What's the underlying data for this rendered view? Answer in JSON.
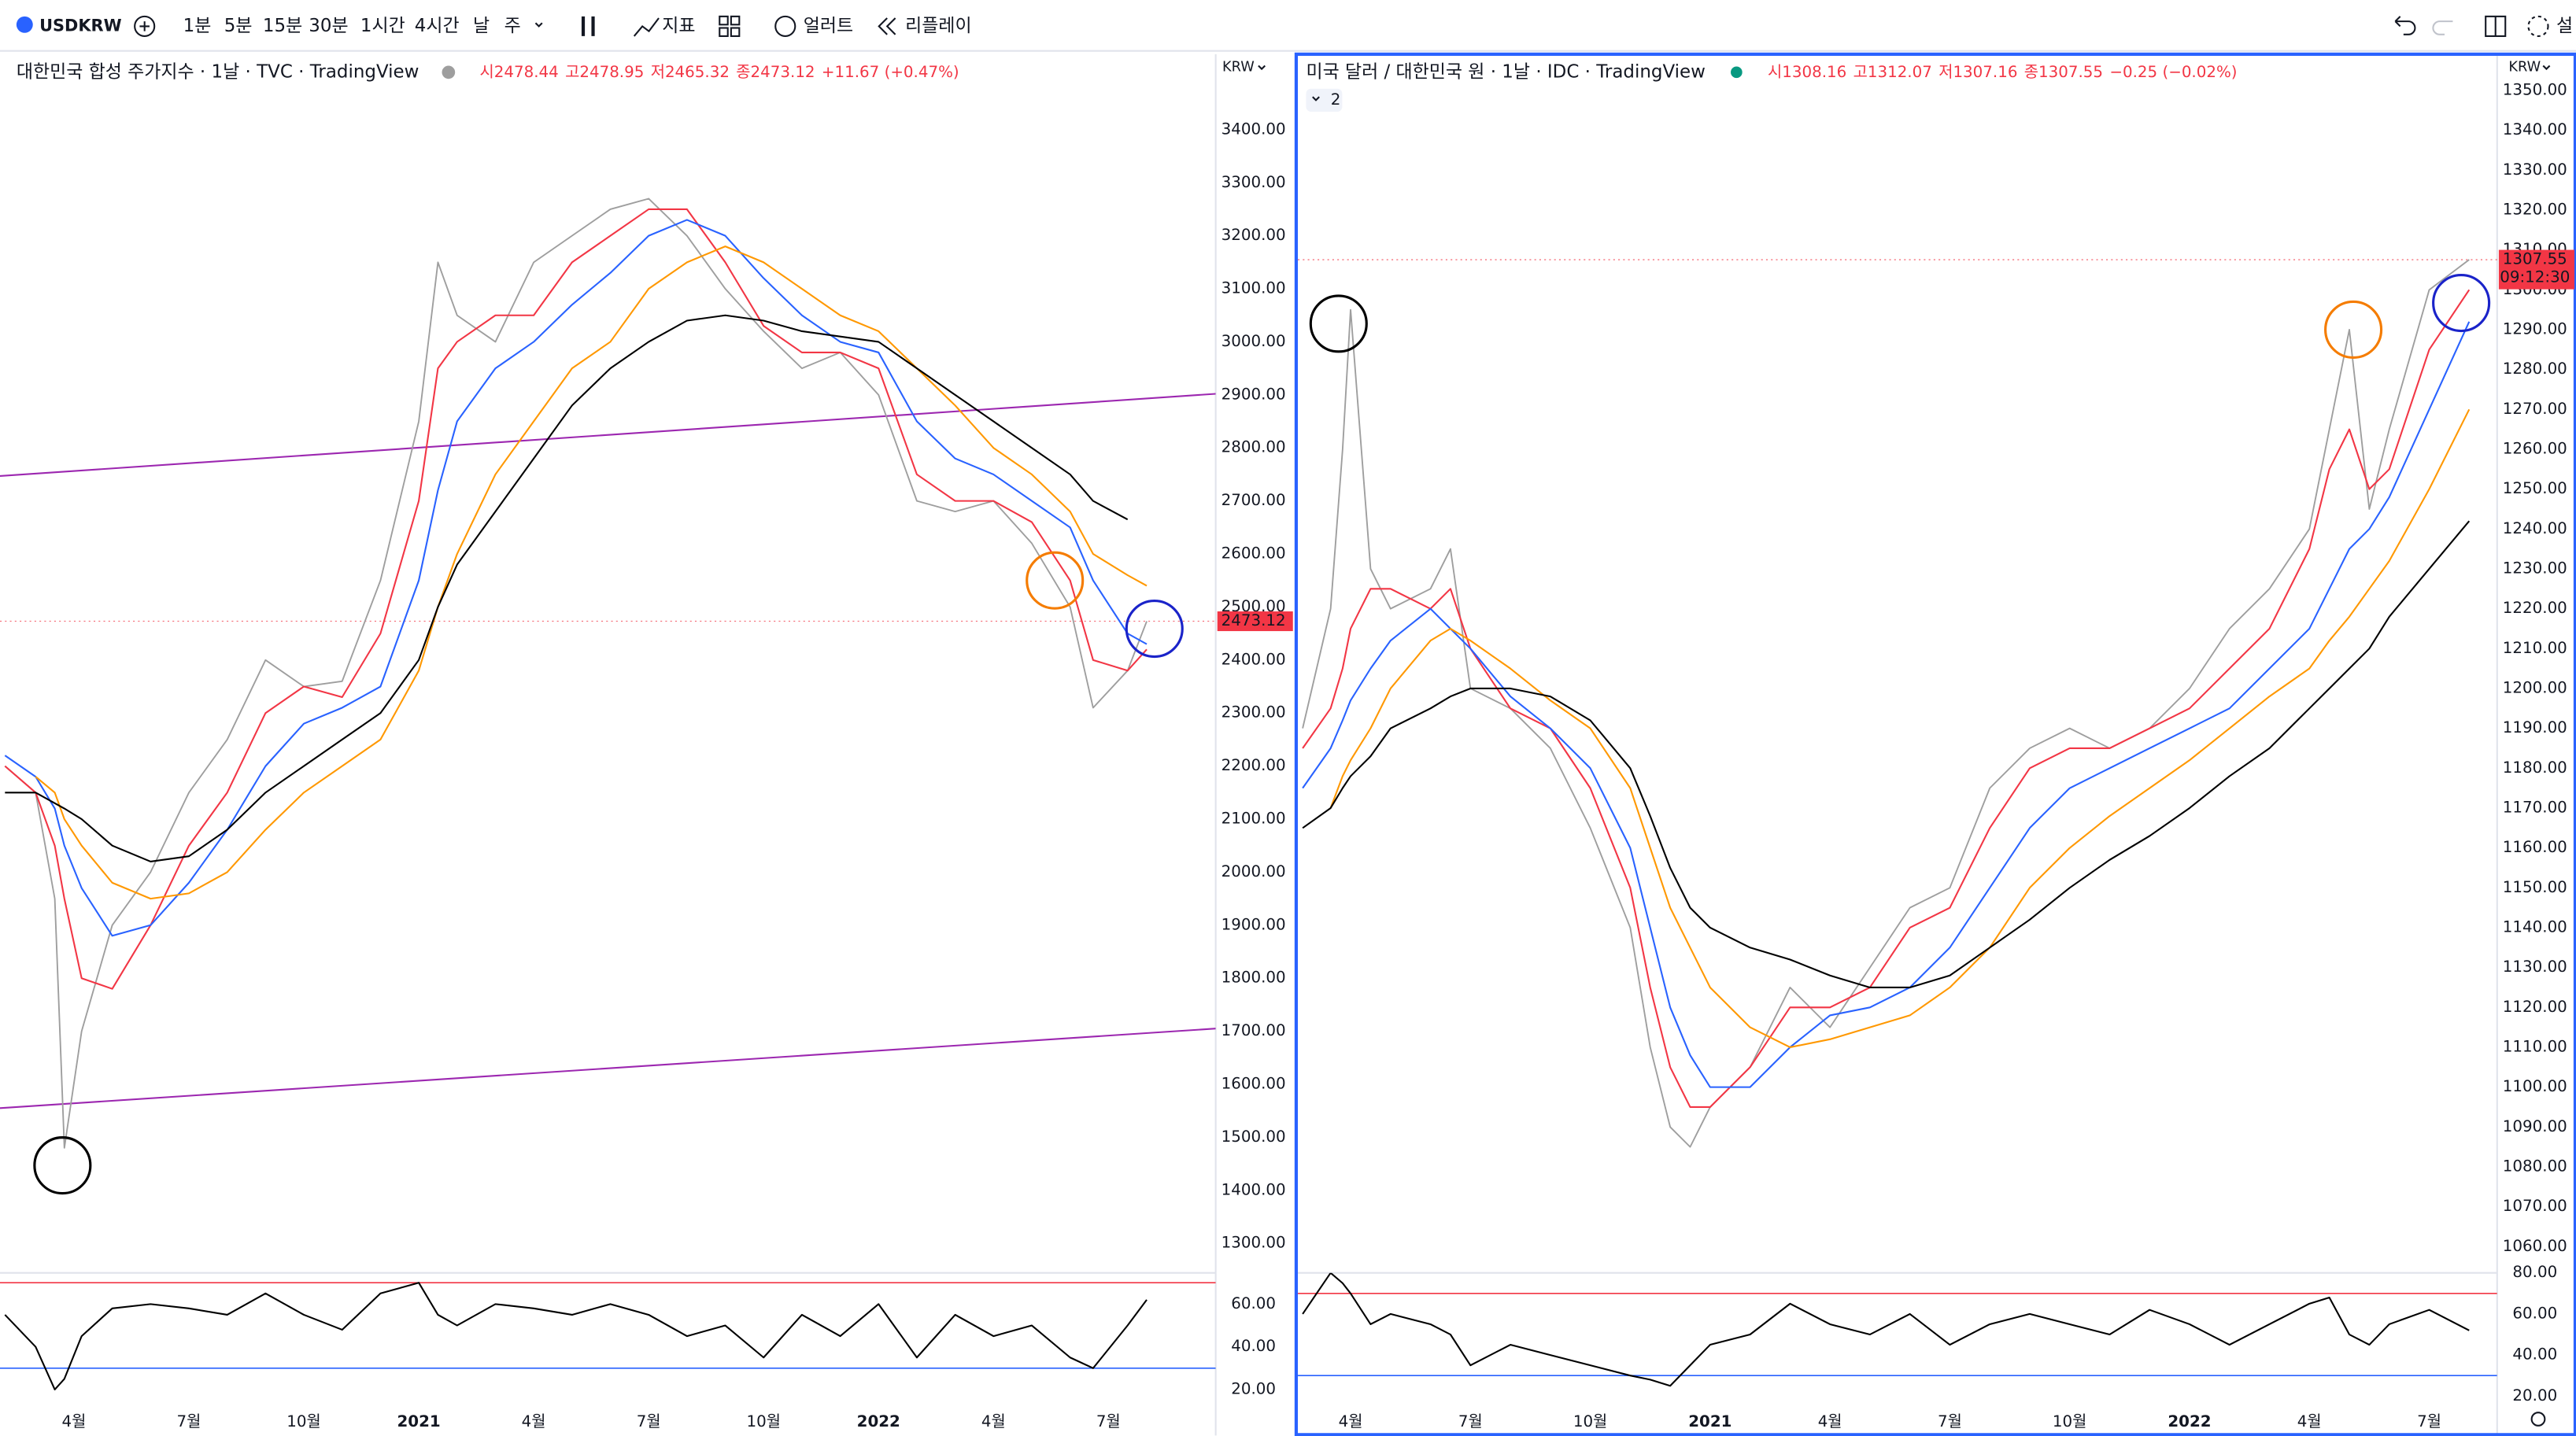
{
  "toolbar": {
    "symbol": "USDKRW",
    "intervals": [
      "1분",
      "5분",
      "15분",
      "30분",
      "1시간",
      "4시간",
      "날",
      "주"
    ],
    "indicators": "지표",
    "alerts": "얼러트",
    "replay": "리플레이",
    "right_partial": "설"
  },
  "chart_data": [
    {
      "type": "line",
      "title": "대한민국 합성 주가지수 · 1날 · TVC · TradingView",
      "ohlc": [
        "시2478.44",
        "고2478.95",
        "저2465.32",
        "종2473.12",
        "+11.67 (+0.47%)"
      ],
      "unit": "KRW",
      "x": [
        1.2,
        2,
        2.5,
        2.75,
        3.2,
        4,
        5,
        6,
        7,
        8,
        9,
        10,
        11,
        12,
        12.5,
        13,
        14,
        15,
        16,
        17,
        18,
        19,
        20,
        21,
        22,
        23,
        24,
        25,
        26,
        27,
        28,
        29,
        29.6,
        30.5,
        31
      ],
      "xlim": [
        1.07,
        32.8
      ],
      "ylim": [
        1244.3,
        3542.4
      ],
      "yticks": [
        {
          "value": 1300,
          "label": "1300.00"
        },
        {
          "value": 1400,
          "label": "1400.00"
        },
        {
          "value": 1500,
          "label": "1500.00"
        },
        {
          "value": 1600,
          "label": "1600.00"
        },
        {
          "value": 1700,
          "label": "1700.00"
        },
        {
          "value": 1800,
          "label": "1800.00"
        },
        {
          "value": 1900,
          "label": "1900.00"
        },
        {
          "value": 2000,
          "label": "2000.00"
        },
        {
          "value": 2100,
          "label": "2100.00"
        },
        {
          "value": 2200,
          "label": "2200.00"
        },
        {
          "value": 2300,
          "label": "2300.00"
        },
        {
          "value": 2400,
          "label": "2400.00"
        },
        {
          "value": 2500,
          "label": "2500.00"
        },
        {
          "value": 2600,
          "label": "2600.00"
        },
        {
          "value": 2700,
          "label": "2700.00"
        },
        {
          "value": 2800,
          "label": "2800.00"
        },
        {
          "value": 2900,
          "label": "2900.00"
        },
        {
          "value": 3000,
          "label": "3000.00"
        },
        {
          "value": 3100,
          "label": "3100.00"
        },
        {
          "value": 3200,
          "label": "3200.00"
        },
        {
          "value": 3300,
          "label": "3300.00"
        },
        {
          "value": 3400,
          "label": "3400.00"
        }
      ],
      "series": [
        {
          "color": "#9e9e9e",
          "values": [
            2200,
            2150,
            1950,
            1480,
            1700,
            1900,
            2000,
            2150,
            2250,
            2400,
            2350,
            2360,
            2550,
            2850,
            3150,
            3050,
            3000,
            3150,
            3200,
            3250,
            3270,
            3200,
            3100,
            3020,
            2950,
            2980,
            2900,
            2700,
            2680,
            2700,
            2620,
            2500,
            2310,
            2380,
            2473.12
          ]
        },
        {
          "color": "#f23645",
          "values": [
            2200,
            2150,
            2050,
            1950,
            1800,
            1780,
            1900,
            2050,
            2150,
            2300,
            2350,
            2330,
            2450,
            2700,
            2950,
            3000,
            3050,
            3050,
            3150,
            3200,
            3250,
            3250,
            3150,
            3030,
            2980,
            2980,
            2950,
            2750,
            2700,
            2700,
            2660,
            2550,
            2400,
            2380,
            2420
          ]
        },
        {
          "color": "#2962ff",
          "values": [
            2220,
            2180,
            2120,
            2050,
            1970,
            1880,
            1900,
            1980,
            2080,
            2200,
            2280,
            2310,
            2350,
            2550,
            2720,
            2850,
            2950,
            3000,
            3070,
            3130,
            3200,
            3230,
            3200,
            3120,
            3050,
            3000,
            2980,
            2850,
            2780,
            2750,
            2700,
            2650,
            2550,
            2450,
            2430
          ]
        },
        {
          "color": "#ff9800",
          "values": [
            null,
            2180,
            2150,
            2100,
            2050,
            1980,
            1950,
            1960,
            2000,
            2080,
            2150,
            2200,
            2250,
            2380,
            2500,
            2600,
            2750,
            2850,
            2950,
            3000,
            3100,
            3150,
            3180,
            3150,
            3100,
            3050,
            3020,
            2950,
            2880,
            2800,
            2750,
            2680,
            2600,
            2560,
            2540
          ]
        },
        {
          "color": "#000000",
          "values": [
            2150,
            2150,
            2130,
            2120,
            2100,
            2050,
            2020,
            2030,
            2080,
            2150,
            2200,
            2250,
            2300,
            2400,
            2500,
            2580,
            2680,
            2780,
            2880,
            2950,
            3000,
            3040,
            3050,
            3040,
            3020,
            3010,
            3000,
            2950,
            2900,
            2850,
            2800,
            2750,
            2700,
            2665,
            null
          ]
        }
      ],
      "trendlines": [
        {
          "color": "#9c27b0",
          "x": [
            1.07,
            32.8
          ],
          "values": [
            2747,
            2902
          ]
        },
        {
          "color": "#9c27b0",
          "x": [
            1.07,
            32.8
          ],
          "values": [
            1555,
            1705
          ]
        }
      ],
      "circles": [
        {
          "x": 2.7,
          "y": 1447,
          "color": "#000000"
        },
        {
          "x": 28.6,
          "y": 2550,
          "color": "#f57c00"
        },
        {
          "x": 31.2,
          "y": 2459,
          "color": "#1a23c9"
        }
      ],
      "last_price": 2473.12,
      "last_price_color": "#f23645"
    },
    {
      "type": "line",
      "x": [
        1.2,
        2,
        2.5,
        2.75,
        3.2,
        4,
        5,
        6,
        7,
        8,
        9,
        10,
        11,
        12,
        12.5,
        13,
        14,
        15,
        16,
        17,
        18,
        19,
        20,
        21,
        22,
        23,
        24,
        25,
        26,
        27,
        28,
        29,
        29.6,
        30.5,
        31
      ],
      "xlim": [
        1.07,
        32.8
      ],
      "ylim": [
        13.1,
        74.6
      ],
      "yticks": [
        {
          "value": 20,
          "label": "20.00"
        },
        {
          "value": 40,
          "label": "40.00"
        },
        {
          "value": 60,
          "label": "60.00"
        }
      ],
      "xticks": [
        {
          "value": 3,
          "label": "4월"
        },
        {
          "value": 6,
          "label": "7월"
        },
        {
          "value": 9,
          "label": "10월"
        },
        {
          "value": 12,
          "label": "2021"
        },
        {
          "value": 15,
          "label": "4월"
        },
        {
          "value": 18,
          "label": "7월"
        },
        {
          "value": 21,
          "label": "10월"
        },
        {
          "value": 24,
          "label": "2022"
        },
        {
          "value": 27,
          "label": "4월"
        },
        {
          "value": 30,
          "label": "7월"
        }
      ],
      "bands": [
        {
          "value": 70,
          "color": "#f23645"
        },
        {
          "value": 30,
          "color": "#2962ff"
        }
      ],
      "series": [
        {
          "color": "#000000",
          "values": [
            55,
            40,
            20,
            25,
            45,
            58,
            60,
            58,
            55,
            65,
            55,
            48,
            65,
            70,
            55,
            50,
            60,
            58,
            55,
            60,
            55,
            45,
            50,
            35,
            55,
            45,
            60,
            35,
            55,
            45,
            50,
            35,
            30,
            50,
            62
          ]
        }
      ]
    },
    {
      "type": "line",
      "title": "미국 달러 / 대한민국 원 · 1날 · IDC · TradingView",
      "ohlc": [
        "시1308.16",
        "고1312.07",
        "저1307.16",
        "종1307.55",
        "−0.25 (−0.02%)"
      ],
      "unit": "KRW",
      "hidden_indicators": 2,
      "x": [
        1.8,
        2.5,
        2.8,
        3,
        3.5,
        4,
        5,
        5.5,
        6,
        7,
        8,
        9,
        10,
        10.5,
        11,
        11.5,
        12,
        13,
        14,
        15,
        16,
        17,
        18,
        19,
        20,
        21,
        22,
        23,
        24,
        25,
        26,
        27,
        27.5,
        28,
        28.5,
        29,
        30,
        31
      ],
      "xlim": [
        1.68,
        31.7
      ],
      "ylim": [
        1053.4,
        1359.1
      ],
      "yticks": [
        {
          "value": 1060,
          "label": "1060.00"
        },
        {
          "value": 1070,
          "label": "1070.00"
        },
        {
          "value": 1080,
          "label": "1080.00"
        },
        {
          "value": 1090,
          "label": "1090.00"
        },
        {
          "value": 1100,
          "label": "1100.00"
        },
        {
          "value": 1110,
          "label": "1110.00"
        },
        {
          "value": 1120,
          "label": "1120.00"
        },
        {
          "value": 1130,
          "label": "1130.00"
        },
        {
          "value": 1140,
          "label": "1140.00"
        },
        {
          "value": 1150,
          "label": "1150.00"
        },
        {
          "value": 1160,
          "label": "1160.00"
        },
        {
          "value": 1170,
          "label": "1170.00"
        },
        {
          "value": 1180,
          "label": "1180.00"
        },
        {
          "value": 1190,
          "label": "1190.00"
        },
        {
          "value": 1200,
          "label": "1200.00"
        },
        {
          "value": 1210,
          "label": "1210.00"
        },
        {
          "value": 1220,
          "label": "1220.00"
        },
        {
          "value": 1230,
          "label": "1230.00"
        },
        {
          "value": 1240,
          "label": "1240.00"
        },
        {
          "value": 1250,
          "label": "1250.00"
        },
        {
          "value": 1260,
          "label": "1260.00"
        },
        {
          "value": 1270,
          "label": "1270.00"
        },
        {
          "value": 1280,
          "label": "1280.00"
        },
        {
          "value": 1290,
          "label": "1290.00"
        },
        {
          "value": 1300,
          "label": "1300.00"
        },
        {
          "value": 1310,
          "label": "1310.00"
        },
        {
          "value": 1320,
          "label": "1320.00"
        },
        {
          "value": 1330,
          "label": "1330.00"
        },
        {
          "value": 1340,
          "label": "1340.00"
        },
        {
          "value": 1350,
          "label": "1350.00"
        }
      ],
      "series": [
        {
          "color": "#9e9e9e",
          "values": [
            1190,
            1220,
            1260,
            1295,
            1230,
            1220,
            1225,
            1235,
            1200,
            1195,
            1185,
            1165,
            1140,
            1110,
            1090,
            1085,
            1095,
            1105,
            1125,
            1115,
            1130,
            1145,
            1150,
            1175,
            1185,
            1190,
            1185,
            1190,
            1200,
            1215,
            1225,
            1240,
            1265,
            1290,
            1245,
            1265,
            1300,
            1307.55
          ]
        },
        {
          "color": "#f23645",
          "values": [
            1185,
            1195,
            1205,
            1215,
            1225,
            1225,
            1220,
            1225,
            1210,
            1195,
            1190,
            1175,
            1150,
            1125,
            1105,
            1095,
            1095,
            1105,
            1120,
            1120,
            1125,
            1140,
            1145,
            1165,
            1180,
            1185,
            1185,
            1190,
            1195,
            1205,
            1215,
            1235,
            1255,
            1265,
            1250,
            1255,
            1285,
            1300
          ]
        },
        {
          "color": "#2962ff",
          "values": [
            1175,
            1185,
            1192,
            1197,
            1205,
            1212,
            1220,
            1215,
            1210,
            1198,
            1190,
            1180,
            1160,
            1140,
            1120,
            1108,
            1100,
            1100,
            1110,
            1118,
            1120,
            1125,
            1135,
            1150,
            1165,
            1175,
            1180,
            1185,
            1190,
            1195,
            1205,
            1215,
            1225,
            1235,
            1240,
            1248,
            1270,
            1292
          ]
        },
        {
          "color": "#ff9800",
          "values": [
            null,
            1170,
            1178,
            1182,
            1190,
            1200,
            1212,
            1215,
            1212,
            1205,
            1197,
            1190,
            1175,
            1160,
            1145,
            1135,
            1125,
            1115,
            1110,
            1112,
            1115,
            1118,
            1125,
            1135,
            1150,
            1160,
            1168,
            1175,
            1182,
            1190,
            1198,
            1205,
            1212,
            1218,
            1225,
            1232,
            1250,
            1270
          ]
        },
        {
          "color": "#000000",
          "values": [
            1165,
            1170,
            1175,
            1178,
            1183,
            1190,
            1195,
            1198,
            1200,
            1200,
            1198,
            1192,
            1180,
            1168,
            1155,
            1145,
            1140,
            1135,
            1132,
            1128,
            1125,
            1125,
            1128,
            1135,
            1142,
            1150,
            1157,
            1163,
            1170,
            1178,
            1185,
            1195,
            1200,
            1205,
            1210,
            1218,
            1230,
            1242
          ]
        }
      ],
      "circles": [
        {
          "x": 2.7,
          "y": 1291.5,
          "color": "#000000"
        },
        {
          "x": 28.1,
          "y": 1290,
          "color": "#f57c00"
        },
        {
          "x": 30.8,
          "y": 1296.7,
          "color": "#1a23c9"
        }
      ],
      "last_price": 1307.55,
      "last_price_color": "#f23645",
      "countdown": "09:12:30"
    },
    {
      "type": "line",
      "x": [
        1.8,
        2.5,
        2.8,
        3,
        3.5,
        4,
        5,
        5.5,
        6,
        7,
        8,
        9,
        10,
        10.5,
        11,
        11.5,
        12,
        13,
        14,
        15,
        16,
        17,
        18,
        19,
        20,
        21,
        22,
        23,
        24,
        25,
        26,
        27,
        27.5,
        28,
        28.5,
        29,
        30,
        31
      ],
      "xlim": [
        1.68,
        31.7
      ],
      "ylim": [
        16,
        80
      ],
      "yticks": [
        {
          "value": 20,
          "label": "20.00"
        },
        {
          "value": 40,
          "label": "40.00"
        },
        {
          "value": 60,
          "label": "60.00"
        },
        {
          "value": 80,
          "label": "80.00"
        }
      ],
      "xticks": [
        {
          "value": 3,
          "label": "4월"
        },
        {
          "value": 6,
          "label": "7월"
        },
        {
          "value": 9,
          "label": "10월"
        },
        {
          "value": 12,
          "label": "2021"
        },
        {
          "value": 15,
          "label": "4월"
        },
        {
          "value": 18,
          "label": "7월"
        },
        {
          "value": 21,
          "label": "10월"
        },
        {
          "value": 24,
          "label": "2022"
        },
        {
          "value": 27,
          "label": "4월"
        },
        {
          "value": 30,
          "label": "7월"
        }
      ],
      "bands": [
        {
          "value": 70,
          "color": "#f23645"
        },
        {
          "value": 30,
          "color": "#2962ff"
        }
      ],
      "series": [
        {
          "color": "#000000",
          "values": [
            60,
            80,
            75,
            70,
            55,
            60,
            55,
            50,
            35,
            45,
            40,
            35,
            30,
            28,
            25,
            35,
            45,
            50,
            65,
            55,
            50,
            60,
            45,
            55,
            60,
            55,
            50,
            62,
            55,
            45,
            55,
            65,
            68,
            50,
            45,
            55,
            62,
            52
          ]
        }
      ]
    }
  ]
}
